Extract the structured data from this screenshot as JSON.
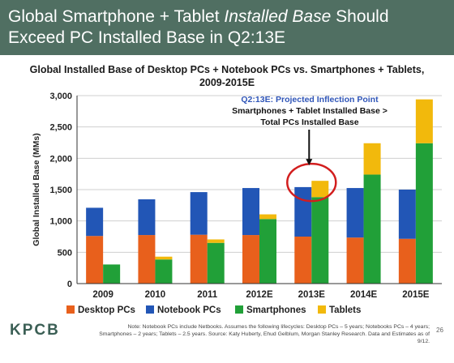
{
  "header": {
    "title_part1": "Global Smartphone + Tablet ",
    "title_em": "Installed Base",
    "title_part2": " Should Exceed PC Installed Base in Q2:13E"
  },
  "chart_data": {
    "type": "bar",
    "title_line1": "Global Installed Base of Desktop PCs + Notebook PCs vs. Smartphones + Tablets,",
    "title_line2": "2009-2015E",
    "ylabel": "Global Installed Base (MMs)",
    "xlabel": "",
    "ylim": [
      0,
      3000
    ],
    "yticks": [
      0,
      500,
      1000,
      1500,
      2000,
      2500,
      3000
    ],
    "ytick_labels": [
      "0",
      "500",
      "1,000",
      "1,500",
      "2,000",
      "2,500",
      "3,000"
    ],
    "categories": [
      "2009",
      "2010",
      "2011",
      "2012E",
      "2013E",
      "2014E",
      "2015E"
    ],
    "stacks": [
      {
        "name": "PCs",
        "series": [
          {
            "name": "Desktop PCs",
            "color": "#e8601c",
            "values": [
              760,
              775,
              780,
              775,
              750,
              735,
              715
            ]
          },
          {
            "name": "Notebook PCs",
            "color": "#2256b6",
            "values": [
              450,
              570,
              680,
              750,
              790,
              790,
              785
            ]
          }
        ]
      },
      {
        "name": "Smartphones + Tablets",
        "series": [
          {
            "name": "Smartphones",
            "color": "#21a038",
            "values": [
              305,
              385,
              650,
              1030,
              1380,
              1740,
              2240
            ]
          },
          {
            "name": "Tablets",
            "color": "#f2b90c",
            "values": [
              0,
              45,
              55,
              75,
              260,
              500,
              700
            ]
          }
        ]
      }
    ],
    "legend": [
      "Desktop PCs",
      "Notebook PCs",
      "Smartphones",
      "Tablets"
    ],
    "legend_position": "bottom",
    "annotation": {
      "line1": "Q2:13E: Projected Inflection Point",
      "line2": "Smartphones + Tablet Installed Base >",
      "line3": "Total PCs Installed Base",
      "target_category": "2013E",
      "circle_color": "#d21e1e",
      "arrow_color": "#111111"
    },
    "grid": true,
    "axis_color": "#333333",
    "grid_color": "#cfcfcf"
  },
  "footer": {
    "logo": "KPCB",
    "note": "Note: Notebook PCs include Netbooks. Assumes the following lifecycles: Desktop PCs – 5 years; Notebooks PCs – 4 years; Smartphones – 2 years; Tablets – 2.5 years. Source: Katy Huberty, Ehud Gelblum, Morgan Stanley Research. Data and Estimates as of 9/12.",
    "page_number": "26"
  }
}
